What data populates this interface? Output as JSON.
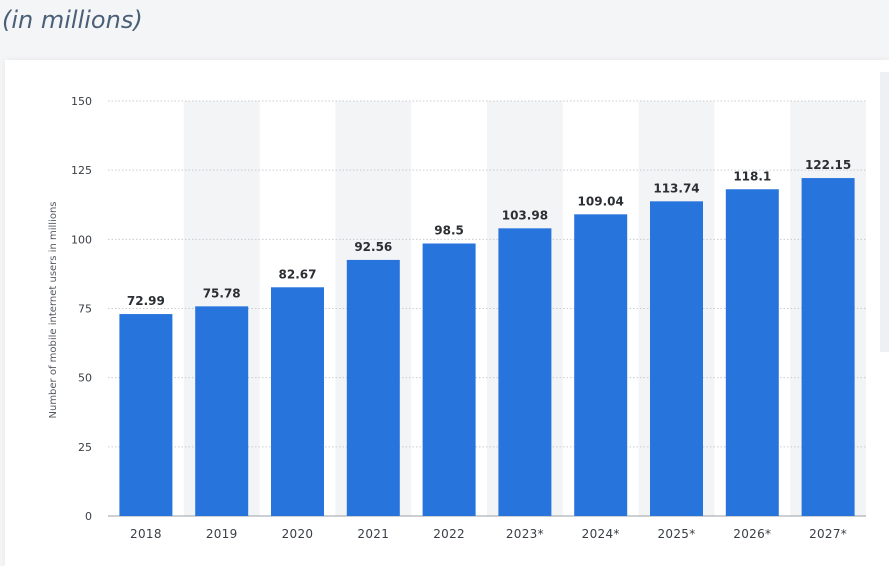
{
  "header": {
    "subtitle": "(in millions)"
  },
  "colors": {
    "bar": "#2874dd",
    "band": "#f3f4f6",
    "grid": "#c9ccd1"
  },
  "chart_data": {
    "type": "bar",
    "categories": [
      "2018",
      "2019",
      "2020",
      "2021",
      "2022",
      "2023*",
      "2024*",
      "2025*",
      "2026*",
      "2027*"
    ],
    "values": [
      72.99,
      75.78,
      82.67,
      92.56,
      98.5,
      103.98,
      109.04,
      113.74,
      118.1,
      122.15
    ],
    "value_labels": [
      "72.99",
      "75.78",
      "82.67",
      "92.56",
      "98.5",
      "103.98",
      "109.04",
      "113.74",
      "118.1",
      "122.15"
    ],
    "ylabel": "Number of mobile internet users in millions",
    "xlabel": "",
    "ylim": [
      0,
      150
    ],
    "yticks": [
      "0",
      "25",
      "50",
      "75",
      "100",
      "125",
      "150"
    ],
    "grid": true,
    "alternating_bands": true
  }
}
